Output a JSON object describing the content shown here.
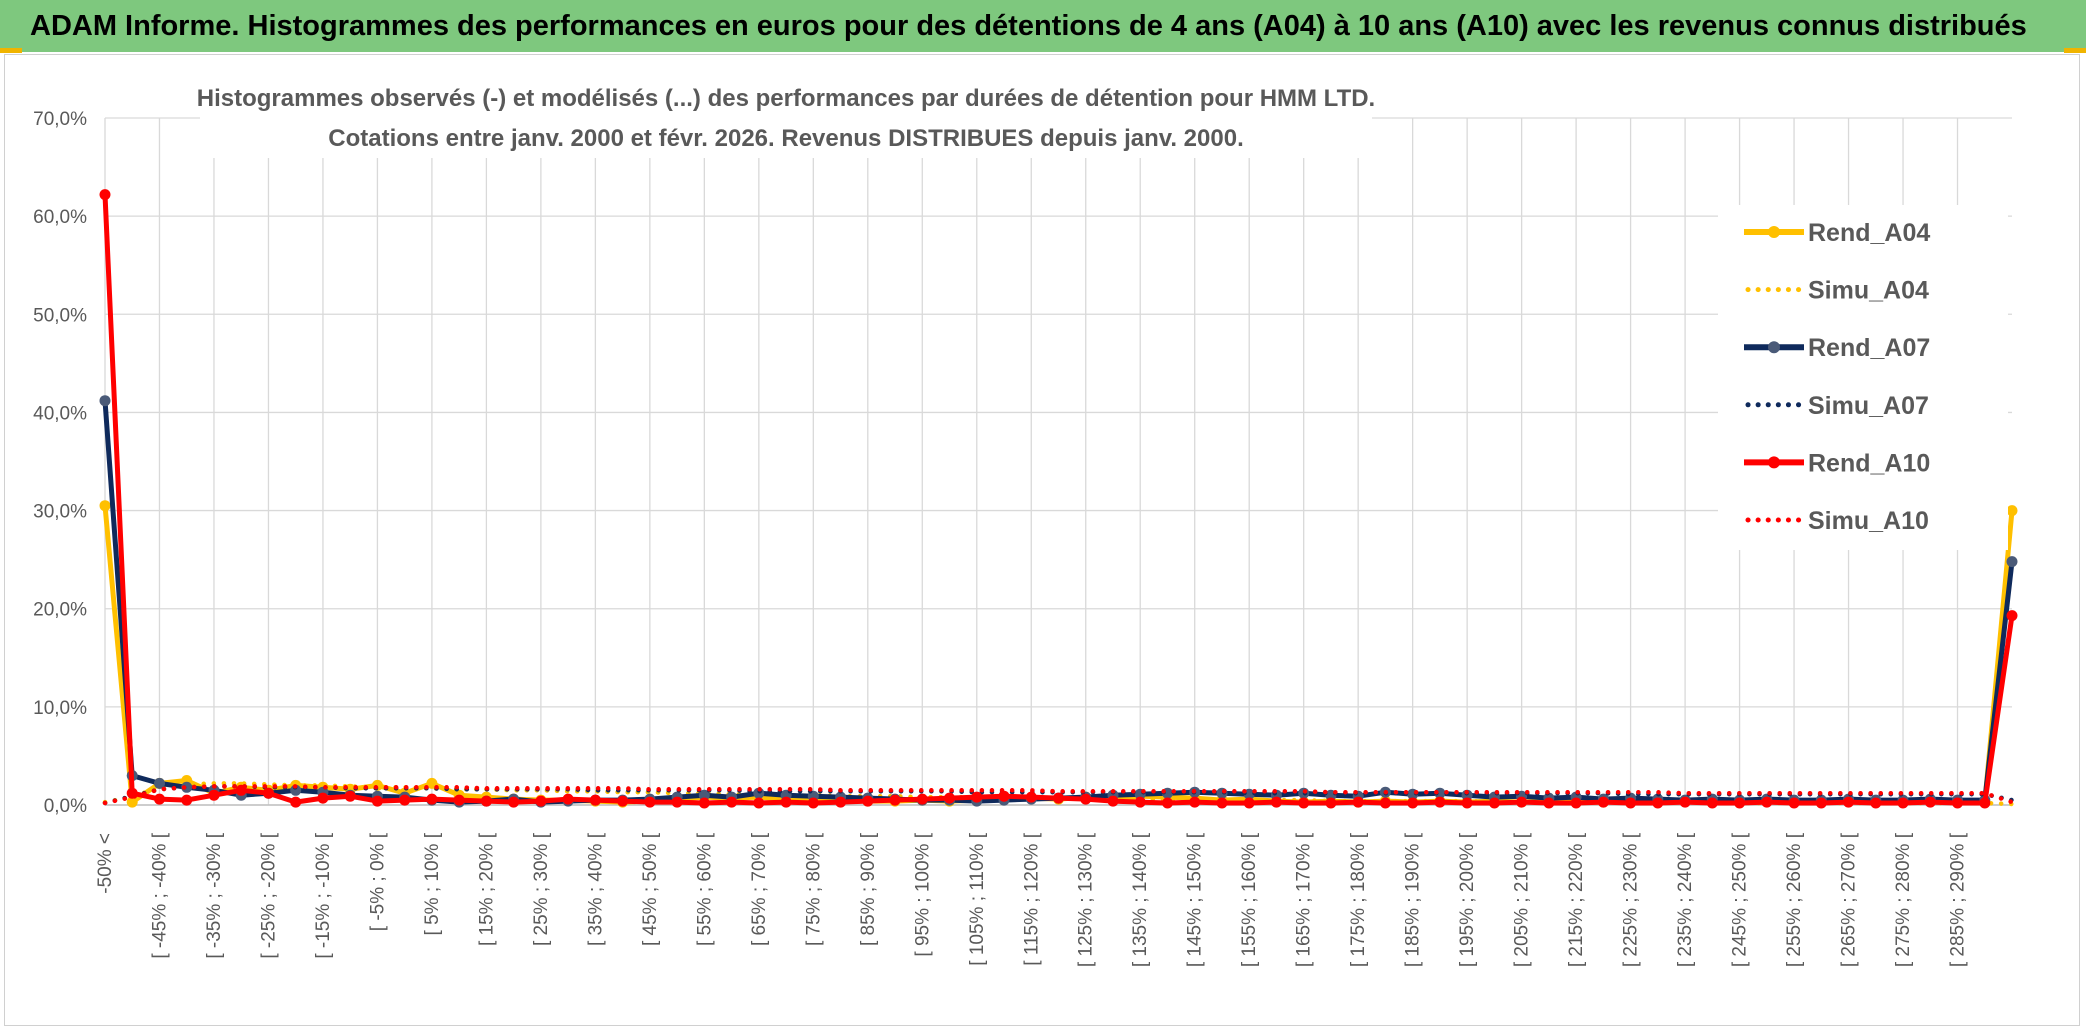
{
  "banner": {
    "title": "ADAM Informe. Histogrammes des performances en euros pour des détentions de 4 ans (A04) à 10 ans (A10) avec les revenus connus distribués"
  },
  "colors": {
    "banner_bg": "#7ec87e",
    "A04": "#FFC000",
    "A07": "#0F2A5C",
    "A07_marker": "#4a5a78",
    "A10": "#FF0000",
    "grid": "#d9d9d9",
    "axis_text": "#595959"
  },
  "chart_data": {
    "type": "line",
    "title": [
      "Histogrammes observés (-) et modélisés (...) des performances par durées de détention pour HMM LTD.",
      "Cotations entre janv. 2000 et févr. 2026. Revenus DISTRIBUES depuis janv. 2000."
    ],
    "ylim": [
      0,
      70
    ],
    "yticks": [
      "0,0%",
      "10,0%",
      "20,0%",
      "30,0%",
      "40,0%",
      "50,0%",
      "60,0%",
      "70,0%"
    ],
    "legend_position": "right",
    "xlabels": [
      "-50% <",
      "[ -45% ; -40% [",
      "[ -35% ; -30% [",
      "[ -25% ; -20% [",
      "[ -15% ; -10% [",
      "[ -5% ; 0% [",
      "[ 5% ; 10% [",
      "[ 15% ; 20% [",
      "[ 25% ; 30% [",
      "[ 35% ; 40% [",
      "[ 45% ; 50% [",
      "[ 55% ; 60% [",
      "[ 65% ; 70% [",
      "[ 75% ; 80% [",
      "[ 85% ; 90% [",
      "[ 95% ; 100% [",
      "[ 105% ; 110% [",
      "[ 115% ; 120% [",
      "[ 125% ; 130% [",
      "[ 135% ; 140% [",
      "[ 145% ; 150% [",
      "[ 155% ; 160% [",
      "[ 165% ; 170% [",
      "[ 175% ; 180% [",
      "[ 185% ; 190% [",
      "[ 195% ; 200% [",
      "[ 205% ; 210% [",
      "[ 215% ; 220% [",
      "[ 225% ; 230% [",
      "[ 235% ; 240% [",
      "[ 245% ; 250% [",
      "[ 255% ; 260% [",
      "[ 265% ; 270% [",
      "[ 275% ; 280% [",
      "[ 285% ; 290% ["
    ],
    "n_categories": 71,
    "series": [
      {
        "name": "Rend_A04",
        "style": "solid",
        "color": "#FFC000",
        "values": [
          30.5,
          0.3,
          2.2,
          2.5,
          1.2,
          1.8,
          1.5,
          2.0,
          1.8,
          1.6,
          2.0,
          1.2,
          2.2,
          1.0,
          0.8,
          0.6,
          0.5,
          0.5,
          0.4,
          0.3,
          0.4,
          0.6,
          0.8,
          0.7,
          0.8,
          0.6,
          0.5,
          0.6,
          0.4,
          0.4,
          0.5,
          0.4,
          0.5,
          0.6,
          0.7,
          0.6,
          0.8,
          0.7,
          0.9,
          0.8,
          0.7,
          0.5,
          0.6,
          0.4,
          0.3,
          0.4,
          0.3,
          0.4,
          0.3,
          0.4,
          0.3,
          0.4,
          0.3,
          0.4,
          0.3,
          0.3,
          0.4,
          0.3,
          0.4,
          0.3,
          0.3,
          0.4,
          0.3,
          0.3,
          0.4,
          0.3,
          0.3,
          0.4,
          0.3,
          0.3,
          30.0
        ]
      },
      {
        "name": "Simu_A04",
        "style": "dotted",
        "color": "#FFC000",
        "values": [
          0.3,
          0.8,
          1.8,
          2.1,
          2.2,
          2.2,
          2.1,
          2.0,
          2.0,
          1.9,
          1.8,
          1.8,
          1.7,
          1.6,
          1.6,
          1.5,
          1.5,
          1.4,
          1.4,
          1.3,
          1.3,
          1.2,
          1.2,
          1.1,
          1.1,
          1.0,
          1.0,
          0.9,
          0.9,
          0.9,
          0.8,
          0.8,
          0.8,
          0.7,
          0.7,
          0.7,
          0.6,
          0.6,
          0.6,
          0.6,
          0.5,
          0.5,
          0.5,
          0.5,
          0.5,
          0.4,
          0.4,
          0.4,
          0.4,
          0.4,
          0.4,
          0.3,
          0.3,
          0.3,
          0.3,
          0.3,
          0.3,
          0.3,
          0.3,
          0.3,
          0.2,
          0.2,
          0.2,
          0.2,
          0.2,
          0.2,
          0.2,
          0.2,
          0.2,
          0.2,
          0.1
        ]
      },
      {
        "name": "Rend_A07",
        "style": "solid",
        "color": "#0F2A5C",
        "values": [
          41.2,
          3.0,
          2.2,
          1.8,
          1.5,
          1.0,
          1.2,
          1.5,
          1.3,
          1.0,
          0.9,
          0.8,
          0.5,
          0.3,
          0.4,
          0.6,
          0.3,
          0.4,
          0.5,
          0.5,
          0.6,
          0.8,
          1.0,
          0.8,
          1.2,
          1.0,
          0.9,
          0.8,
          0.7,
          0.6,
          0.5,
          0.5,
          0.4,
          0.5,
          0.6,
          0.7,
          0.8,
          1.0,
          1.1,
          1.2,
          1.3,
          1.2,
          1.1,
          1.0,
          1.2,
          1.0,
          0.9,
          1.3,
          1.1,
          1.2,
          1.0,
          0.8,
          0.9,
          0.7,
          0.8,
          0.6,
          0.7,
          0.6,
          0.5,
          0.6,
          0.5,
          0.6,
          0.5,
          0.5,
          0.6,
          0.5,
          0.5,
          0.6,
          0.5,
          0.5,
          24.8
        ]
      },
      {
        "name": "Simu_A07",
        "style": "dotted",
        "color": "#0F2A5C",
        "values": [
          0.2,
          0.9,
          1.6,
          1.8,
          1.9,
          1.9,
          1.8,
          1.8,
          1.8,
          1.7,
          1.7,
          1.7,
          1.7,
          1.6,
          1.6,
          1.6,
          1.6,
          1.6,
          1.5,
          1.5,
          1.5,
          1.5,
          1.5,
          1.5,
          1.4,
          1.4,
          1.4,
          1.4,
          1.4,
          1.4,
          1.4,
          1.4,
          1.3,
          1.3,
          1.3,
          1.3,
          1.3,
          1.3,
          1.3,
          1.3,
          1.3,
          1.3,
          1.2,
          1.2,
          1.2,
          1.2,
          1.2,
          1.2,
          1.2,
          1.2,
          1.2,
          1.2,
          1.2,
          1.2,
          1.2,
          1.2,
          1.1,
          1.1,
          1.1,
          1.1,
          1.1,
          1.1,
          1.1,
          1.1,
          1.1,
          1.1,
          1.1,
          1.1,
          1.1,
          1.1,
          0.5
        ]
      },
      {
        "name": "Rend_A10",
        "style": "solid",
        "color": "#FF0000",
        "values": [
          62.2,
          1.2,
          0.6,
          0.5,
          1.0,
          1.5,
          1.2,
          0.3,
          0.7,
          0.9,
          0.4,
          0.5,
          0.6,
          0.5,
          0.4,
          0.3,
          0.4,
          0.6,
          0.5,
          0.4,
          0.3,
          0.3,
          0.2,
          0.3,
          0.2,
          0.3,
          0.2,
          0.3,
          0.4,
          0.5,
          0.6,
          0.7,
          0.8,
          0.9,
          0.8,
          0.7,
          0.6,
          0.4,
          0.3,
          0.2,
          0.3,
          0.2,
          0.2,
          0.3,
          0.2,
          0.2,
          0.3,
          0.2,
          0.2,
          0.3,
          0.2,
          0.2,
          0.3,
          0.2,
          0.2,
          0.3,
          0.2,
          0.2,
          0.3,
          0.2,
          0.2,
          0.3,
          0.2,
          0.2,
          0.3,
          0.2,
          0.2,
          0.3,
          0.2,
          0.2,
          19.3
        ]
      },
      {
        "name": "Simu_A10",
        "style": "dotted",
        "color": "#FF0000",
        "values": [
          0.2,
          0.8,
          1.6,
          1.8,
          1.9,
          1.9,
          1.9,
          1.9,
          1.8,
          1.8,
          1.8,
          1.8,
          1.8,
          1.8,
          1.7,
          1.7,
          1.7,
          1.7,
          1.7,
          1.7,
          1.6,
          1.6,
          1.6,
          1.6,
          1.6,
          1.6,
          1.6,
          1.5,
          1.5,
          1.5,
          1.5,
          1.5,
          1.5,
          1.5,
          1.5,
          1.4,
          1.4,
          1.4,
          1.4,
          1.4,
          1.4,
          1.4,
          1.4,
          1.4,
          1.4,
          1.3,
          1.3,
          1.3,
          1.3,
          1.3,
          1.3,
          1.3,
          1.3,
          1.3,
          1.3,
          1.3,
          1.3,
          1.3,
          1.2,
          1.2,
          1.2,
          1.2,
          1.2,
          1.2,
          1.2,
          1.2,
          1.2,
          1.2,
          1.2,
          1.2,
          0.3
        ]
      }
    ]
  }
}
